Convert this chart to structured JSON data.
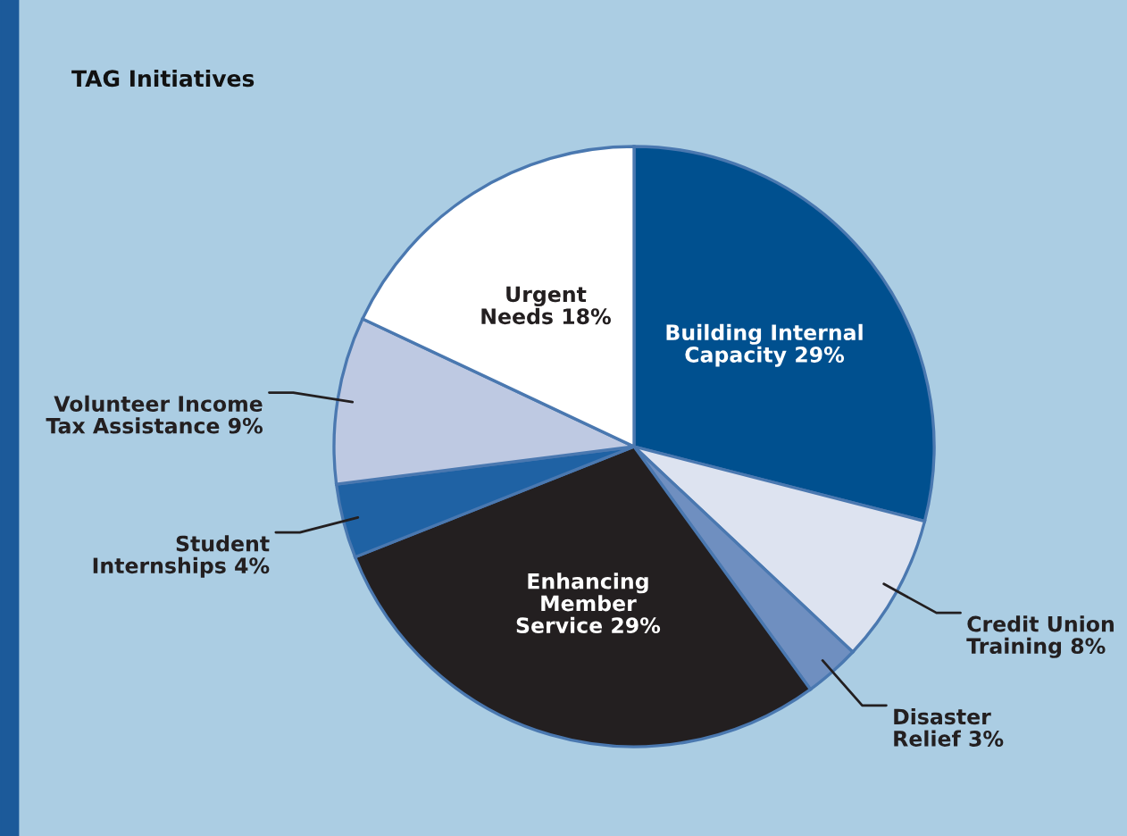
{
  "chart_data": {
    "type": "pie",
    "title": "TAG Initiatives",
    "categories": [
      "Building Internal\nCapacity",
      "Credit Union\nTraining",
      "Disaster\nRelief",
      "Enhancing\nMember\nService",
      "Student\nInternships",
      "Volunteer Income\nTax Assistance",
      "Urgent\nNeeds"
    ],
    "values": [
      29,
      8,
      3,
      29,
      4,
      9,
      18
    ],
    "value_labels": [
      "29%",
      "8%",
      "3%",
      "29%",
      "4%",
      "9%",
      "18%"
    ],
    "colors": [
      "#00508f",
      "#dde3f0",
      "#6f8fc0",
      "#231f20",
      "#1f62a4",
      "#bec9e2",
      "#ffffff"
    ],
    "legend": false
  }
}
